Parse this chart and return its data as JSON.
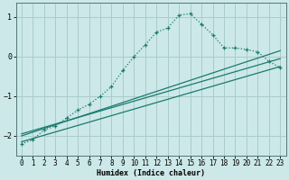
{
  "bg_color": "#cce8e8",
  "grid_color": "#aacccc",
  "line_color": "#1a7a6e",
  "xlabel": "Humidex (Indice chaleur)",
  "xlim": [
    -0.5,
    23.5
  ],
  "ylim": [
    -2.5,
    1.35
  ],
  "yticks": [
    -2,
    -1,
    0,
    1
  ],
  "xticks": [
    0,
    1,
    2,
    3,
    4,
    5,
    6,
    7,
    8,
    9,
    10,
    11,
    12,
    13,
    14,
    15,
    16,
    17,
    18,
    19,
    20,
    21,
    22,
    23
  ],
  "curve1_x": [
    0,
    1,
    2,
    3,
    4,
    5,
    6,
    7,
    8,
    9,
    10,
    11,
    12,
    13,
    14,
    15,
    16,
    17,
    18,
    19,
    20,
    21,
    22,
    23
  ],
  "curve1_y": [
    -2.2,
    -2.1,
    -1.85,
    -1.75,
    -1.55,
    -1.35,
    -1.2,
    -1.0,
    -0.75,
    -0.35,
    0.0,
    0.3,
    0.62,
    0.72,
    1.05,
    1.08,
    0.82,
    0.55,
    0.22,
    0.22,
    0.18,
    0.12,
    -0.12,
    -0.28
  ],
  "line2_x": [
    0,
    23
  ],
  "line2_y": [
    -2.15,
    -0.25
  ],
  "line3_x": [
    0,
    23
  ],
  "line3_y": [
    -1.95,
    -0.05
  ],
  "line4_x": [
    0,
    23
  ],
  "line4_y": [
    -2.0,
    0.15
  ],
  "title_fontsize": 7,
  "xlabel_fontsize": 6,
  "tick_fontsize": 5.5
}
